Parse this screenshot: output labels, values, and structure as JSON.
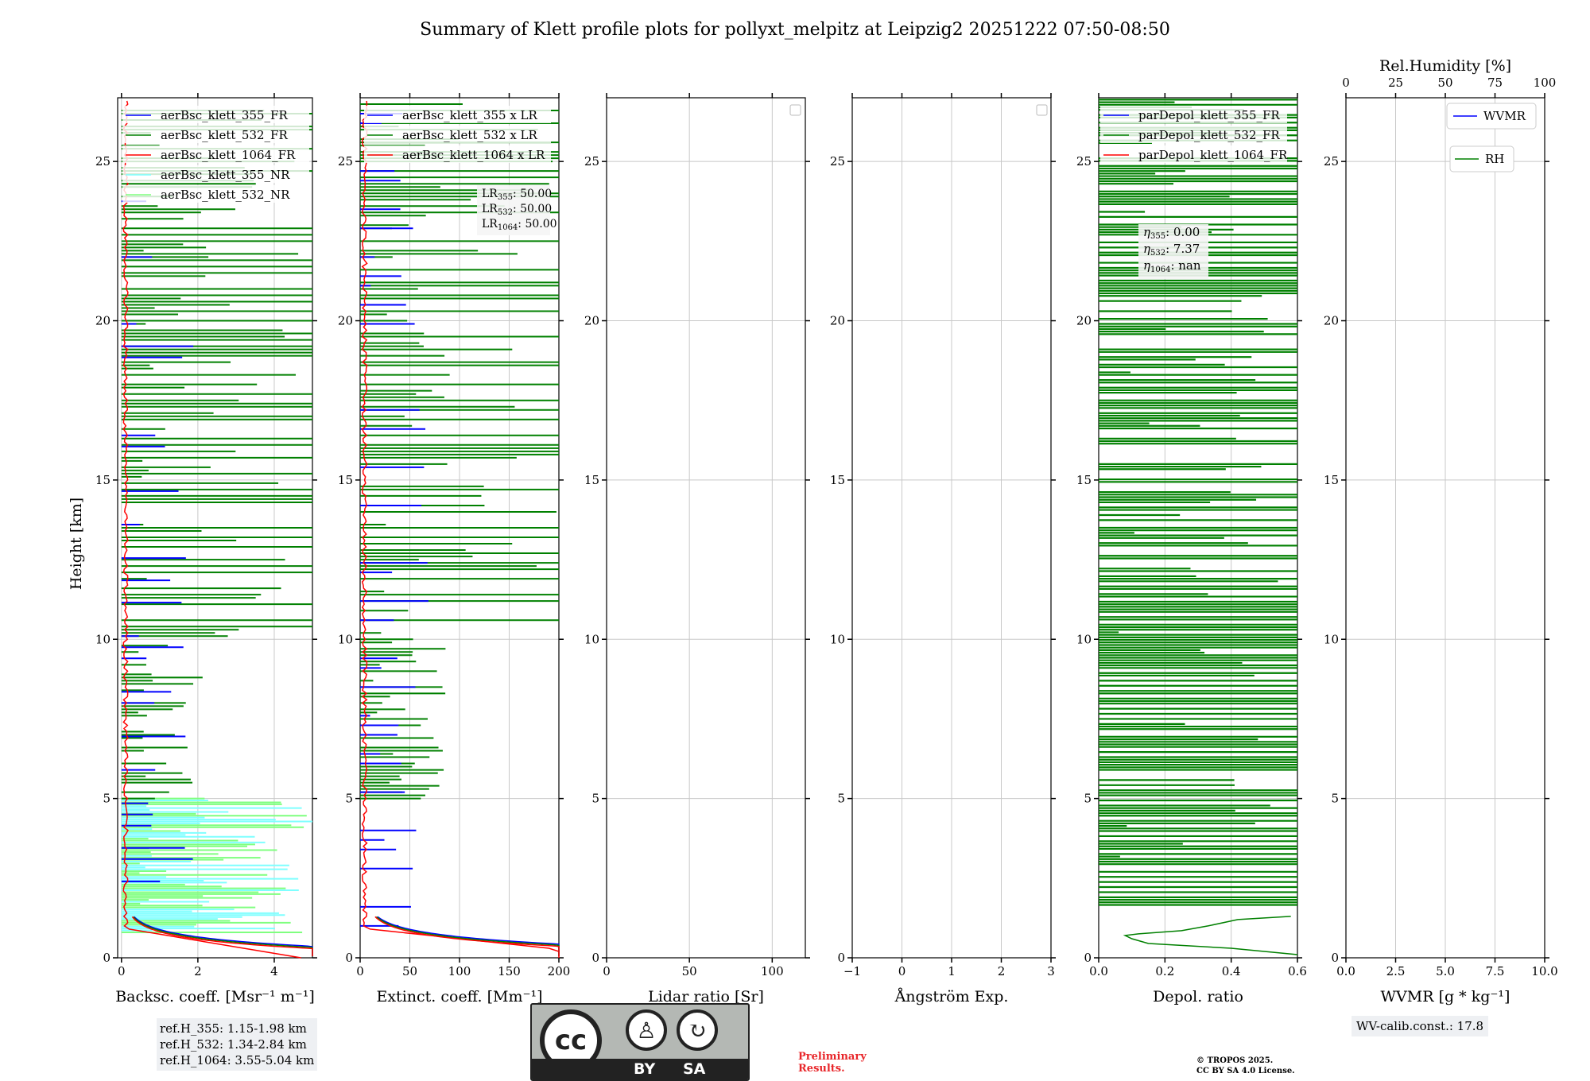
{
  "figure_title": "Summary of Klett profile plots for pollyxt_melpitz at Leipzig2 20251222 07:50-08:50",
  "colors": {
    "c355": "#0000ff",
    "c532": "#008000",
    "c1064": "#ff0000",
    "c355nr": "#7fffff",
    "c532nr": "#7fff7f",
    "grid": "#c8c8c8"
  },
  "height_axis": {
    "label": "Height [km]",
    "ylim": [
      0,
      27
    ],
    "ticks": [
      0,
      5,
      10,
      15,
      20,
      25
    ]
  },
  "chart_data": [
    {
      "type": "line",
      "id": "backscatter",
      "xlabel": "Backsc. coeff. [Msr⁻¹ m⁻¹]",
      "xlim": [
        -0.1,
        5
      ],
      "xticks": [
        0,
        2,
        4
      ],
      "legend": [
        "aerBsc_klett_355_FR",
        "aerBsc_klett_532_FR",
        "aerBsc_klett_1064_FR",
        "aerBsc_klett_355_NR",
        "aerBsc_klett_532_NR"
      ],
      "legend_position": "top-left",
      "annotation": [
        "ref.H_355: 1.15-1.98 km",
        "ref.H_532: 1.34-2.84 km",
        "ref.H_1064: 3.55-5.04 km"
      ]
    },
    {
      "type": "line",
      "id": "extinction",
      "xlabel": "Extinct. coeff. [Mm⁻¹]",
      "xlim": [
        0,
        200
      ],
      "xticks": [
        0,
        50,
        100,
        150,
        200
      ],
      "legend": [
        "aerBsc_klett_355 x LR",
        "aerBsc_klett_532 x LR",
        "aerBsc_klett_1064 x LR"
      ],
      "legend_position": "top-left",
      "lidar_ratio_box": [
        {
          "label": "LR",
          "sub": "355",
          "value": ": 50.00"
        },
        {
          "label": "LR",
          "sub": "532",
          "value": ": 50.00"
        },
        {
          "label": "LR",
          "sub": "1064",
          "value": ": 50.00"
        }
      ]
    },
    {
      "type": "line",
      "id": "lidar_ratio",
      "xlabel": "Lidar ratio [Sr]",
      "xlim": [
        0,
        120
      ],
      "xticks": [
        0,
        50,
        100
      ],
      "series": []
    },
    {
      "type": "line",
      "id": "angstrom",
      "xlabel": "Ångström Exp.",
      "xlim": [
        -1,
        3
      ],
      "xticks": [
        -1,
        0,
        1,
        2,
        3
      ],
      "series": []
    },
    {
      "type": "line",
      "id": "depol",
      "xlabel": "Depol. ratio",
      "xlim": [
        0,
        0.6
      ],
      "xticks": [
        0.0,
        0.2,
        0.4,
        0.6
      ],
      "legend": [
        "parDepol_klett_355_FR",
        "parDepol_klett_532_FR",
        "parDepol_klett_1064_FR"
      ],
      "legend_position": "top-left",
      "eta_box": [
        {
          "label": "η",
          "sub": "355",
          "value": ": 0.00"
        },
        {
          "label": "η",
          "sub": "532",
          "value": ": 7.37"
        },
        {
          "label": "η",
          "sub": "1064",
          "value": ": nan"
        }
      ]
    },
    {
      "type": "line",
      "id": "wvmr",
      "xlabel": "WVMR [g * kg⁻¹]",
      "xlim": [
        0,
        10
      ],
      "xticks": [
        0.0,
        2.5,
        5.0,
        7.5,
        10.0
      ],
      "top_xlabel": "Rel.Humidity [%]",
      "top_xlim": [
        0,
        100
      ],
      "top_xticks": [
        0,
        25,
        50,
        75,
        100
      ],
      "legend": [
        "WVMR",
        "RH"
      ],
      "annotation": "WV-calib.const.: 17.8"
    }
  ],
  "footer": {
    "cc": {
      "by": "BY",
      "sa": "SA",
      "cc": "cc"
    },
    "preliminary": [
      "Preliminary",
      "Results."
    ],
    "license": [
      "© TROPOS 2025.",
      "CC BY SA 4.0 License."
    ]
  }
}
